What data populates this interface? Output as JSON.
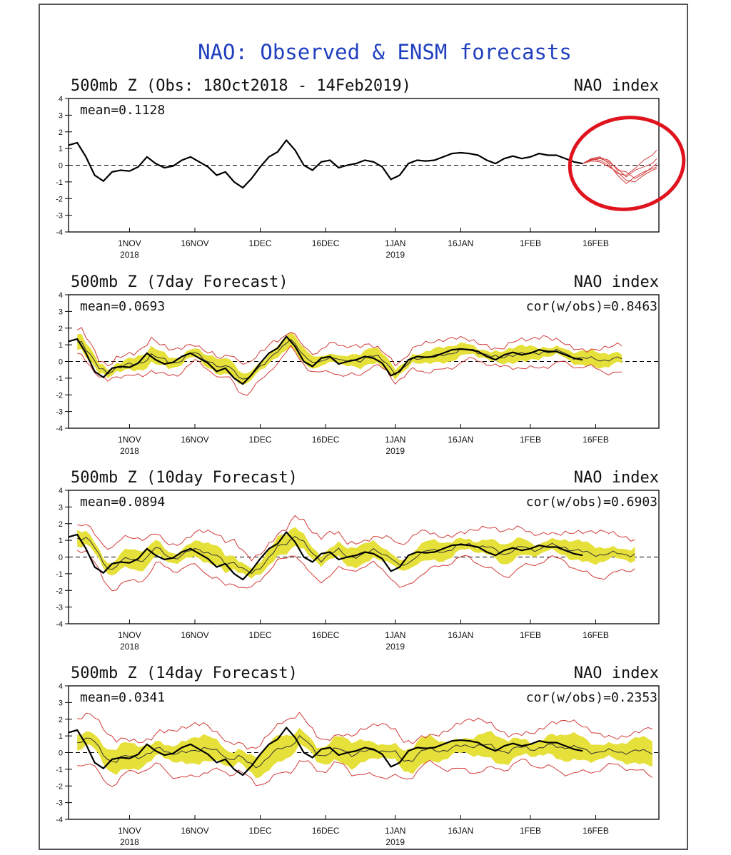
{
  "main_title": "NAO: Observed & ENSM forecasts",
  "colors": {
    "title": "#1f3fbf",
    "observed": "#000000",
    "forecast_member": "#d23c3c",
    "spread_fill": "#e6e03a",
    "circle": "#e0141e"
  },
  "chart_data": [
    {
      "type": "line",
      "title": "500mb Z (Obs: 18Oct2018 - 14Feb2019)",
      "index_label": "NAO index",
      "mean_text": "mean=0.1128",
      "cor_text": "",
      "ylim": [
        -4,
        4
      ],
      "y_ticks": [
        "4",
        "3",
        "2",
        "1",
        "0",
        "-1",
        "-2",
        "-3",
        "-4"
      ],
      "x_ticks": [
        {
          "day": 14,
          "label": "1NOV",
          "year": "2018"
        },
        {
          "day": 29,
          "label": "16NOV",
          "year": ""
        },
        {
          "day": 44,
          "label": "1DEC",
          "year": ""
        },
        {
          "day": 59,
          "label": "16DEC",
          "year": ""
        },
        {
          "day": 75,
          "label": "1JAN",
          "year": "2019"
        },
        {
          "day": 90,
          "label": "16JAN",
          "year": ""
        },
        {
          "day": 106,
          "label": "1FEB",
          "year": ""
        },
        {
          "day": 121,
          "label": "16FEB",
          "year": ""
        }
      ],
      "observed": [
        [
          0,
          1.2
        ],
        [
          2,
          1.35
        ],
        [
          4,
          0.5
        ],
        [
          6,
          -0.6
        ],
        [
          8,
          -0.95
        ],
        [
          10,
          -0.4
        ],
        [
          12,
          -0.3
        ],
        [
          14,
          -0.35
        ],
        [
          16,
          -0.1
        ],
        [
          18,
          0.5
        ],
        [
          20,
          0.1
        ],
        [
          22,
          -0.15
        ],
        [
          24,
          -0.05
        ],
        [
          26,
          0.3
        ],
        [
          28,
          0.5
        ],
        [
          30,
          0.2
        ],
        [
          32,
          -0.1
        ],
        [
          34,
          -0.6
        ],
        [
          36,
          -0.4
        ],
        [
          38,
          -1.0
        ],
        [
          40,
          -1.35
        ],
        [
          42,
          -0.8
        ],
        [
          44,
          -0.1
        ],
        [
          46,
          0.5
        ],
        [
          48,
          0.8
        ],
        [
          50,
          1.5
        ],
        [
          52,
          0.9
        ],
        [
          54,
          0.0
        ],
        [
          56,
          -0.3
        ],
        [
          58,
          0.2
        ],
        [
          60,
          0.3
        ],
        [
          62,
          -0.15
        ],
        [
          64,
          0.0
        ],
        [
          66,
          0.1
        ],
        [
          68,
          0.3
        ],
        [
          70,
          0.2
        ],
        [
          72,
          -0.1
        ],
        [
          74,
          -0.85
        ],
        [
          76,
          -0.6
        ],
        [
          78,
          0.1
        ],
        [
          80,
          0.3
        ],
        [
          82,
          0.25
        ],
        [
          84,
          0.3
        ],
        [
          86,
          0.5
        ],
        [
          88,
          0.7
        ],
        [
          90,
          0.75
        ],
        [
          92,
          0.7
        ],
        [
          94,
          0.6
        ],
        [
          96,
          0.3
        ],
        [
          98,
          0.1
        ],
        [
          100,
          0.4
        ],
        [
          102,
          0.55
        ],
        [
          104,
          0.4
        ],
        [
          106,
          0.5
        ],
        [
          108,
          0.7
        ],
        [
          110,
          0.6
        ],
        [
          112,
          0.6
        ],
        [
          114,
          0.4
        ],
        [
          116,
          0.2
        ],
        [
          118,
          0.1
        ]
      ],
      "forecast_members": [
        [
          [
            118,
            0.1
          ],
          [
            120,
            0.35
          ],
          [
            122,
            0.3
          ],
          [
            124,
            0.0
          ],
          [
            126,
            -0.5
          ],
          [
            128,
            -0.6
          ],
          [
            130,
            -0.2
          ],
          [
            132,
            0.3
          ],
          [
            134,
            0.6
          ],
          [
            135,
            0.9
          ]
        ],
        [
          [
            118,
            0.1
          ],
          [
            120,
            0.3
          ],
          [
            122,
            0.4
          ],
          [
            124,
            0.2
          ],
          [
            126,
            -0.2
          ],
          [
            128,
            -0.7
          ],
          [
            130,
            -0.3
          ],
          [
            132,
            -0.1
          ],
          [
            134,
            0.1
          ],
          [
            135,
            0.4
          ]
        ],
        [
          [
            118,
            0.1
          ],
          [
            120,
            0.4
          ],
          [
            122,
            0.5
          ],
          [
            124,
            0.1
          ],
          [
            126,
            -0.6
          ],
          [
            128,
            -1.1
          ],
          [
            130,
            -0.7
          ],
          [
            132,
            -0.4
          ],
          [
            134,
            -0.2
          ],
          [
            135,
            -0.1
          ]
        ],
        [
          [
            118,
            0.1
          ],
          [
            120,
            0.25
          ],
          [
            122,
            0.2
          ],
          [
            124,
            -0.1
          ],
          [
            126,
            -0.4
          ],
          [
            128,
            -0.9
          ],
          [
            130,
            -1.0
          ],
          [
            132,
            -0.6
          ],
          [
            134,
            -0.3
          ],
          [
            135,
            -0.2
          ]
        ],
        [
          [
            118,
            0.1
          ],
          [
            120,
            0.35
          ],
          [
            122,
            0.45
          ],
          [
            124,
            0.3
          ],
          [
            126,
            -0.3
          ],
          [
            128,
            -0.4
          ],
          [
            130,
            -0.8
          ],
          [
            132,
            -0.5
          ],
          [
            134,
            -0.1
          ],
          [
            135,
            0.1
          ]
        ]
      ]
    },
    {
      "type": "line",
      "title": "500mb Z (7day Forecast)",
      "index_label": "NAO index",
      "mean_text": "mean=0.0693",
      "cor_text": "cor(w/obs)=0.8463",
      "ylim": [
        -4,
        4
      ],
      "observed_end": 118,
      "forecast_start": 2,
      "forecast_end": 127,
      "band_halfwidth": 0.35,
      "envelope_halfwidth": 0.7,
      "forecast_mean_shift": 0.05
    },
    {
      "type": "line",
      "title": "500mb Z (10day Forecast)",
      "index_label": "NAO index",
      "mean_text": "mean=0.0894",
      "cor_text": "cor(w/obs)=0.6903",
      "ylim": [
        -4,
        4
      ],
      "observed_end": 118,
      "forecast_start": 2,
      "forecast_end": 130,
      "band_halfwidth": 0.45,
      "envelope_halfwidth": 1.05,
      "forecast_mean_shift": 0.1
    },
    {
      "type": "line",
      "title": "500mb Z (14day Forecast)",
      "index_label": "NAO index",
      "mean_text": "mean=0.0341",
      "cor_text": "cor(w/obs)=0.2353",
      "ylim": [
        -4,
        4
      ],
      "observed_end": 118,
      "forecast_start": 2,
      "forecast_end": 134,
      "band_halfwidth": 0.6,
      "envelope_halfwidth": 1.2,
      "forecast_mean_shift": 0.0
    }
  ]
}
